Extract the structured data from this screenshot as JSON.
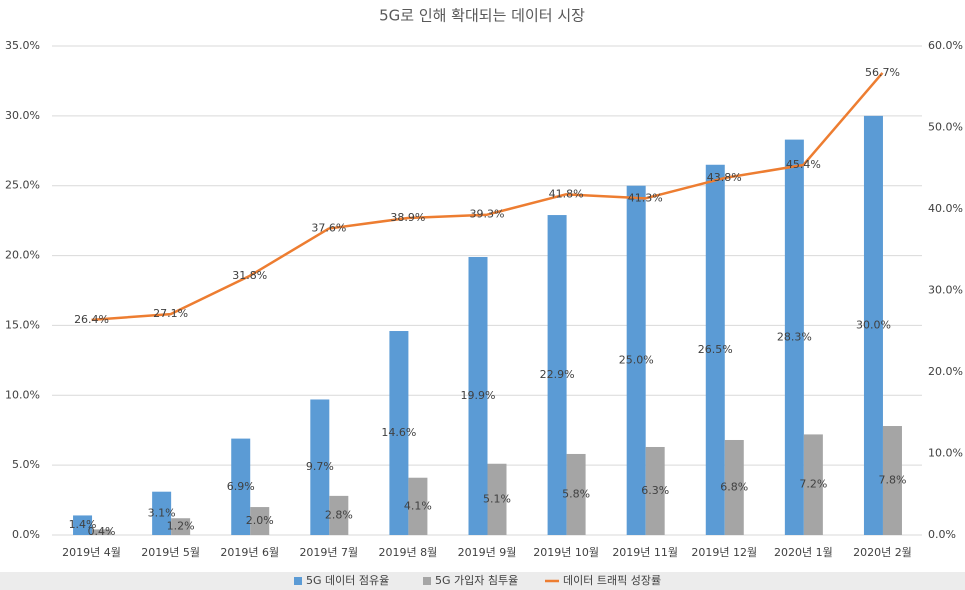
{
  "chart_data": {
    "type": "bar-line",
    "title": "5G로 인해 확대되는 데이터 시장",
    "categories": [
      "2019년 4월",
      "2019년 5월",
      "2019년 6월",
      "2019년 7월",
      "2019년 8월",
      "2019년 9월",
      "2019년 10월",
      "2019년 11월",
      "2019년 12월",
      "2020년 1월",
      "2020년 2월"
    ],
    "series": [
      {
        "name": "5G 데이터 점유율",
        "type": "bar",
        "color": "#5b9bd5",
        "values": [
          1.4,
          3.1,
          6.9,
          9.7,
          14.6,
          19.9,
          22.9,
          25.0,
          26.5,
          28.3,
          30.0
        ],
        "value_labels": [
          "1.4%",
          "3.1%",
          "6.9%",
          "9.7%",
          "14.6%",
          "19.9%",
          "22.9%",
          "25.0%",
          "26.5%",
          "28.3%",
          "30.0%"
        ]
      },
      {
        "name": "5G 가입자 침투율",
        "type": "bar",
        "color": "#a5a5a5",
        "values": [
          0.4,
          1.2,
          2.0,
          2.8,
          4.1,
          5.1,
          5.8,
          6.3,
          6.8,
          7.2,
          7.8
        ],
        "value_labels": [
          "0.4%",
          "1.2%",
          "2.0%",
          "2.8%",
          "4.1%",
          "5.1%",
          "5.8%",
          "6.3%",
          "6.8%",
          "7.2%",
          "7.8%"
        ]
      },
      {
        "name": "데이터 트래픽 성장률",
        "type": "line",
        "axis": "y2",
        "color": "#ed7d31",
        "values": [
          26.4,
          27.1,
          31.8,
          37.6,
          38.9,
          39.3,
          41.8,
          41.3,
          43.8,
          45.4,
          56.7
        ],
        "value_labels": [
          "26.4%",
          "27.1%",
          "31.8%",
          "37.6%",
          "38.9%",
          "39.3%",
          "41.8%",
          "41.3%",
          "43.8%",
          "45.4%",
          "56.7%"
        ]
      }
    ],
    "ylim": [
      0,
      35
    ],
    "yticks": [
      {
        "value": 0,
        "label": "0.0%"
      },
      {
        "value": 5,
        "label": "5.0%"
      },
      {
        "value": 10,
        "label": "10.0%"
      },
      {
        "value": 15,
        "label": "15.0%"
      },
      {
        "value": 20,
        "label": "20.0%"
      },
      {
        "value": 25,
        "label": "25.0%"
      },
      {
        "value": 30,
        "label": "30.0%"
      },
      {
        "value": 35,
        "label": "35.0%"
      }
    ],
    "y2lim": [
      0,
      60
    ],
    "y2ticks": [
      {
        "value": 0,
        "label": "0.0%"
      },
      {
        "value": 10,
        "label": "10.0%"
      },
      {
        "value": 20,
        "label": "20.0%"
      },
      {
        "value": 30,
        "label": "30.0%"
      },
      {
        "value": 40,
        "label": "40.0%"
      },
      {
        "value": 50,
        "label": "50.0%"
      },
      {
        "value": 60,
        "label": "60.0%"
      }
    ],
    "grid": true,
    "legend": "bottom"
  }
}
